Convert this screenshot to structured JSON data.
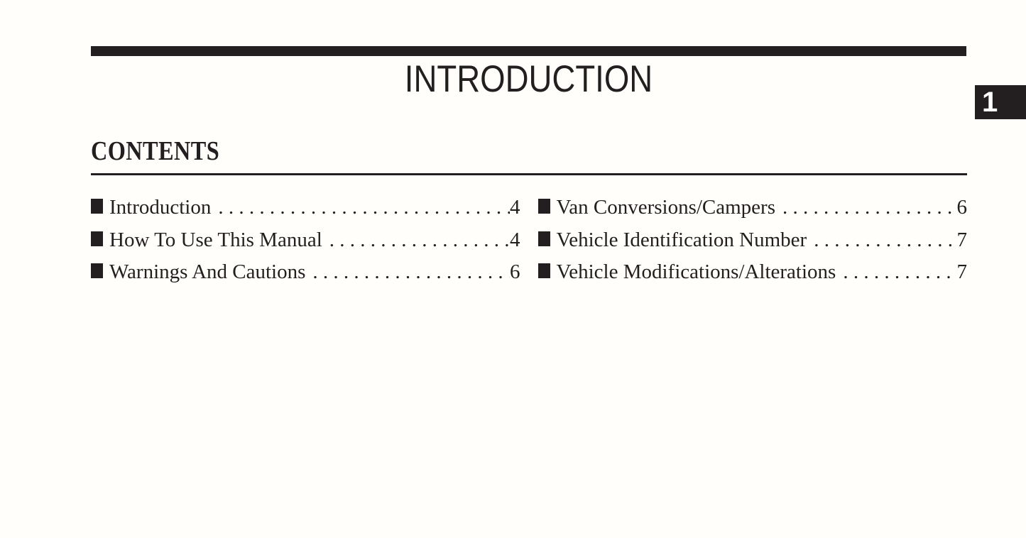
{
  "page": {
    "title": "INTRODUCTION",
    "contents_heading": "CONTENTS",
    "section_tab": "1"
  },
  "toc": {
    "columns": [
      {
        "entries": [
          {
            "label": "Introduction",
            "page": "4"
          },
          {
            "label": "How To Use This Manual",
            "page": "4"
          },
          {
            "label": "Warnings And Cautions",
            "page": "6"
          }
        ]
      },
      {
        "entries": [
          {
            "label": "Van Conversions/Campers",
            "page": "6"
          },
          {
            "label": "Vehicle Identification Number",
            "page": "7"
          },
          {
            "label": "Vehicle Modifications/Alterations",
            "page": "7"
          }
        ]
      }
    ]
  },
  "colors": {
    "ink": "#231f20",
    "paper": "#fffefa"
  }
}
